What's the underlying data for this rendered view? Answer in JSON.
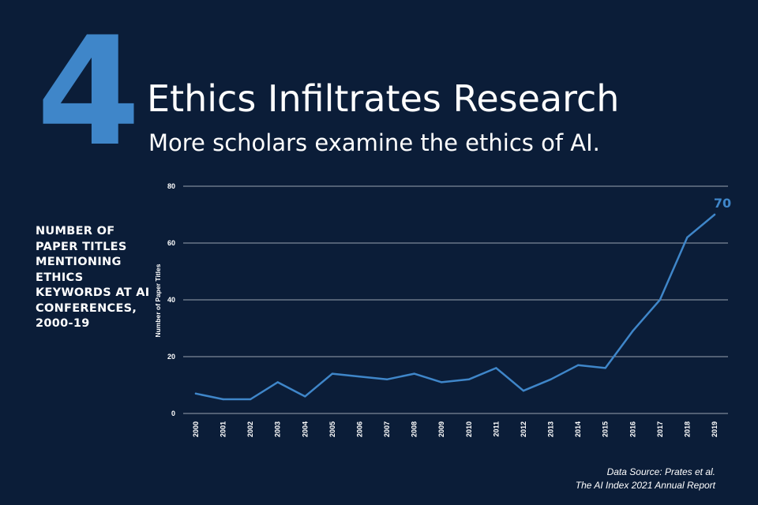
{
  "header": {
    "number": "4",
    "title": "Ethics Infiltrates Research",
    "subtitle": "More scholars examine the ethics of AI."
  },
  "side_label": "NUMBER OF PAPER TITLES MENTIONING ETHICS KEYWORDS AT AI CONFERENCES, 2000-19",
  "source": {
    "line1": "Data Source: Prates et al.",
    "line2": "The AI Index 2021 Annual Report"
  },
  "colors": {
    "background": "#0b1d38",
    "accent": "#3f86c9",
    "text": "#ffffff",
    "grid": "#c9cfd8"
  },
  "chart_data": {
    "type": "line",
    "x": [
      "2000",
      "2001",
      "2002",
      "2003",
      "2004",
      "2005",
      "2006",
      "2007",
      "2008",
      "2009",
      "2010",
      "2011",
      "2012",
      "2013",
      "2014",
      "2015",
      "2016",
      "2017",
      "2018",
      "2019"
    ],
    "series": [
      {
        "values": [
          7,
          5,
          5,
          11,
          6,
          14,
          13,
          12,
          14,
          11,
          12,
          16,
          8,
          12,
          17,
          16,
          29,
          40,
          62,
          70
        ]
      }
    ],
    "end_label": "70",
    "ylabel": "Number of Paper Titles",
    "xlabel": "",
    "ylim": [
      0,
      80
    ],
    "yticks": [
      0,
      20,
      40,
      60,
      80
    ],
    "grid": true,
    "legend": "none"
  }
}
